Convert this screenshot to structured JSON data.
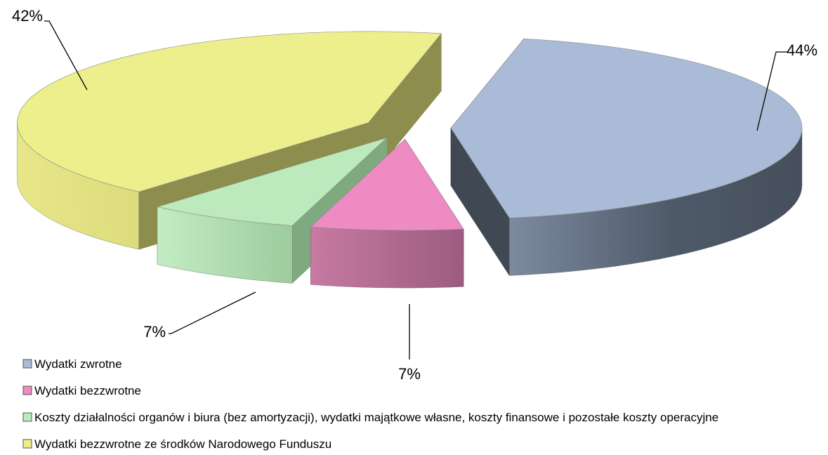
{
  "chart_data": {
    "type": "pie",
    "variant": "3d-exploded",
    "categories": [
      "Wydatki zwrotne",
      "Wydatki bezzwrotne",
      "Koszty działalności organów i biura (bez amortyzacji), wydatki majątkowe własne, koszty finansowe i pozostałe koszty operacyjne",
      "Wydatki bezzwrotne ze środków Narodowego Funduszu"
    ],
    "values": [
      44,
      7,
      7,
      42
    ],
    "data_labels": [
      "44%",
      "7%",
      "7%",
      "42%"
    ],
    "colors": [
      "#A9BBD6",
      "#EE8BC2",
      "#BCEABD",
      "#EDEE8C"
    ],
    "legend_position": "bottom-left"
  }
}
